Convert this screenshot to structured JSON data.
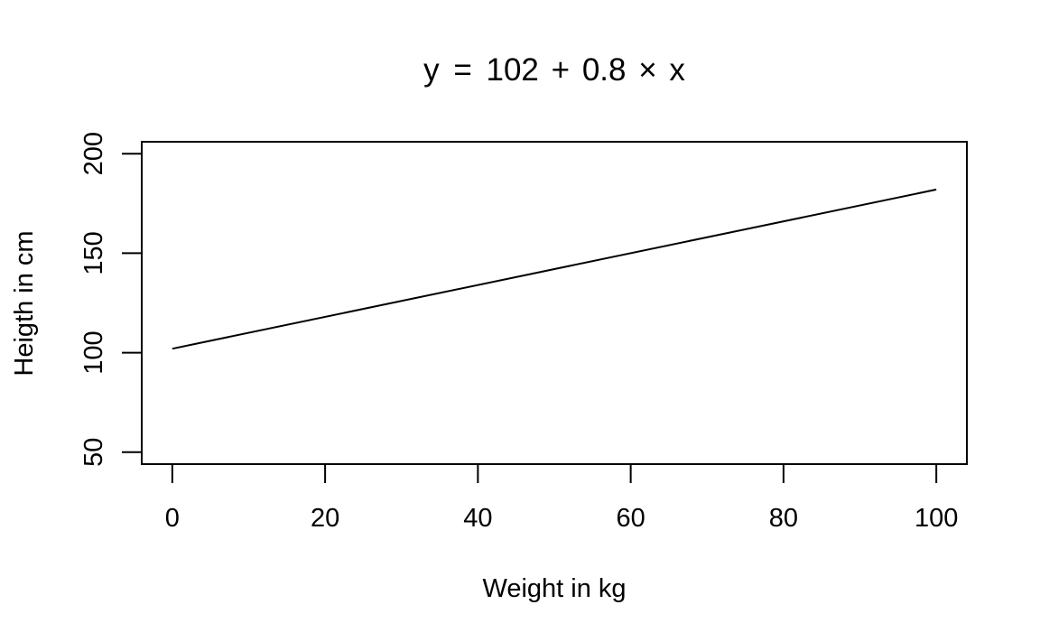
{
  "chart_data": {
    "type": "line",
    "title": "y = 102 + 0.8 × x",
    "title_parts": [
      "y",
      "=",
      "102",
      "+",
      "0.8",
      "×",
      "x"
    ],
    "xlabel": "Weight in kg",
    "ylabel": "Heigth in cm",
    "xlim": [
      -4,
      104
    ],
    "ylim": [
      44,
      206
    ],
    "xticks": [
      0,
      20,
      40,
      60,
      80,
      100
    ],
    "yticks": [
      50,
      100,
      150,
      200
    ],
    "x": [
      0,
      100
    ],
    "y": [
      102,
      182
    ],
    "grid": false,
    "legend": "none",
    "line_color": "#000000"
  }
}
